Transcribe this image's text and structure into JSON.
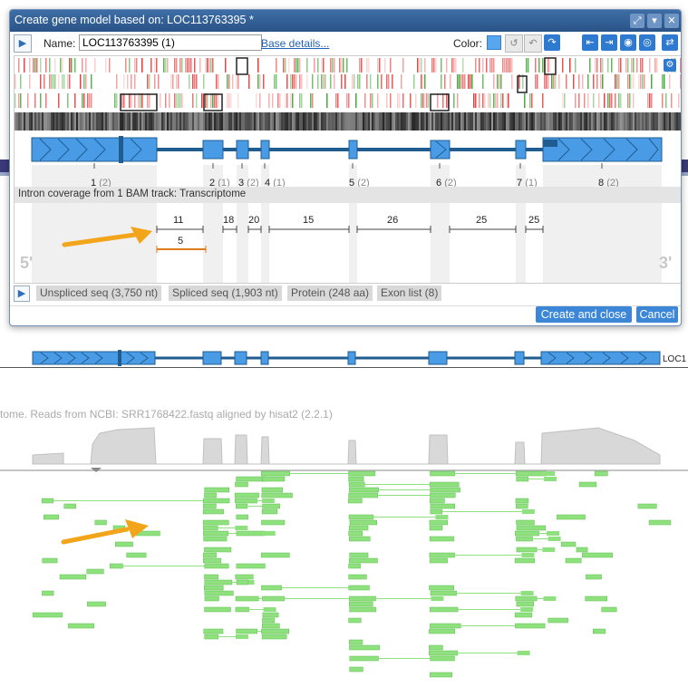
{
  "dialog": {
    "title": "Create gene model based on: LOC113763395 *",
    "name_label": "Name:",
    "name_value": "LOC113763395 (1)",
    "base_details_link": "Base details...",
    "color_label": "Color:",
    "color_value": "#58a6ee",
    "titlebar_icons": [
      "maximize-icon",
      "menu-down-icon",
      "close-icon"
    ],
    "toolbar_icons": [
      "undo-all-icon",
      "undo-icon",
      "redo-icon",
      "collapse-icon",
      "expand-icon",
      "eye-add-icon",
      "eye-download-icon",
      "swap-icon",
      "gear-icon"
    ]
  },
  "exons": [
    {
      "label": "1",
      "count": "(2)"
    },
    {
      "label": "2",
      "count": "(1)"
    },
    {
      "label": "3",
      "count": "(2)"
    },
    {
      "label": "4",
      "count": "(1)"
    },
    {
      "label": "5",
      "count": "(2)"
    },
    {
      "label": "6",
      "count": "(2)"
    },
    {
      "label": "7",
      "count": "(1)"
    },
    {
      "label": "8",
      "count": "(2)"
    }
  ],
  "intron_track": {
    "label": "Intron coverage from 1 BAM track: Transcriptome",
    "introns": [
      "11",
      "18",
      "20",
      "15",
      "26",
      "25",
      "25"
    ],
    "alt_intron": "5",
    "five_prime": "5'",
    "three_prime": "3'"
  },
  "tabs": [
    "Unspliced seq (3,750 nt)",
    "Spliced seq (1,903 nt)",
    "Protein (248 aa)",
    "Exon list (8)"
  ],
  "buttons": {
    "create_and_close": "Create and close",
    "cancel": "Cancel"
  },
  "background": {
    "gene_label": "LOC1",
    "track_label": "tome. Reads from NCBI: SRR1768422.fastq aligned by hisat2 (2.2.1)"
  },
  "colors": {
    "exon_fill": "#4a9be6",
    "exon_line": "#1f5d91",
    "read_fill": "#8fe07f",
    "arrow": "#f2a51b"
  }
}
